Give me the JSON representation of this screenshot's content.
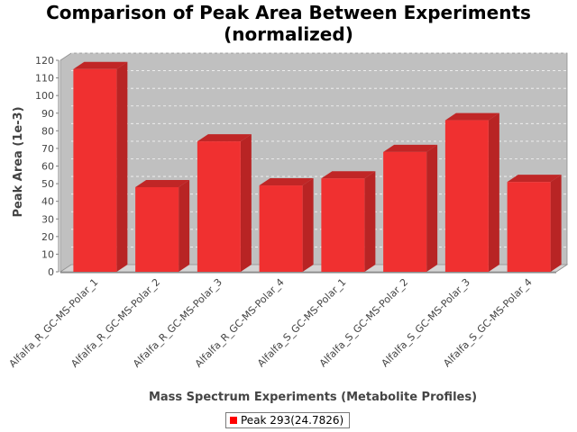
{
  "chart_data": {
    "type": "bar",
    "title_lines": [
      "Comparison of Peak Area Between Experiments",
      "(normalized)"
    ],
    "xlabel": "Mass Spectrum Experiments (Metabolite Profiles)",
    "ylabel": "Peak Area (1e-3)",
    "ylim": [
      0,
      120
    ],
    "yticks": [
      0,
      10,
      20,
      30,
      40,
      50,
      60,
      70,
      80,
      90,
      100,
      110,
      120
    ],
    "grid": true,
    "legend_position": "bottom",
    "categories": [
      "Alfalfa_R_GC-MS-Polar_1",
      "Alfalfa_R_GC-MS-Polar_2",
      "Alfalfa_R_GC-MS-Polar_3",
      "Alfalfa_R_GC-MS-Polar_4",
      "Alfalfa_S_GC-MS-Polar_1",
      "Alfalfa_S_GC-MS-Polar_2",
      "Alfalfa_S_GC-MS-Polar_3",
      "Alfalfa_S_GC-MS-Polar_4"
    ],
    "series": [
      {
        "name": "Peak 293(24.7826)",
        "color": "#ff0000",
        "values": [
          115,
          48,
          74,
          49,
          53,
          68,
          86,
          51
        ]
      }
    ]
  },
  "colors": {
    "plot_background": "#c0c0c0",
    "plot_side": "#d4d4d4",
    "bar_front": "#f03030",
    "bar_top": "#c02626",
    "bar_side": "#b82424"
  }
}
